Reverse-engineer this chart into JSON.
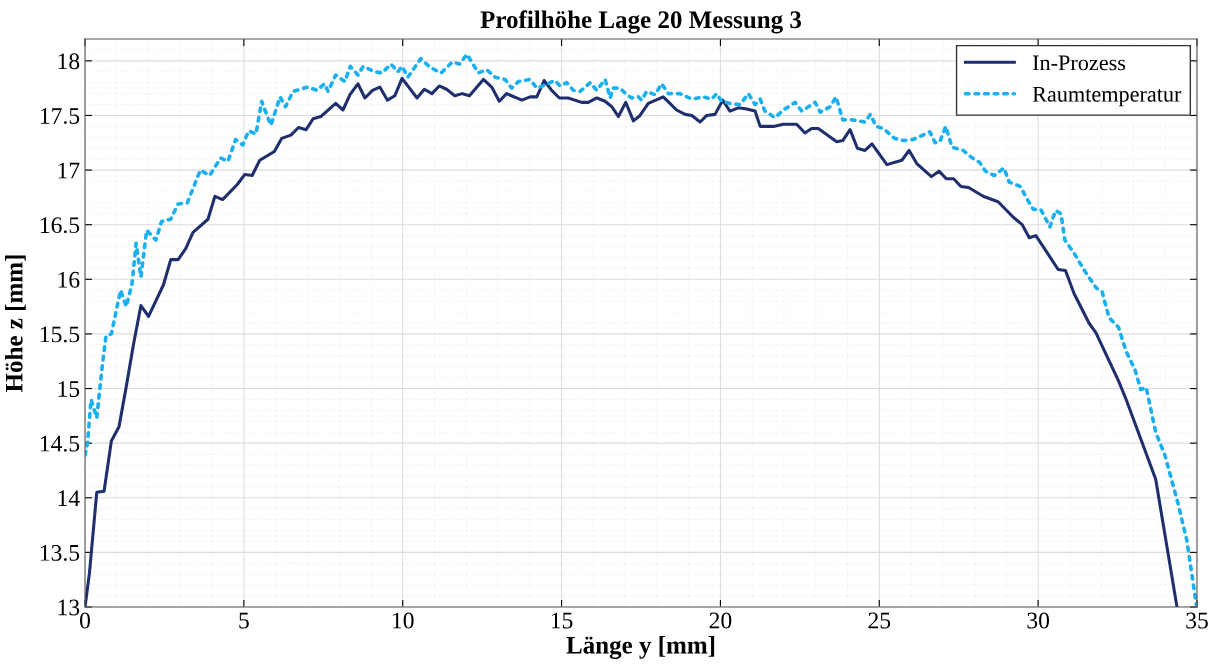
{
  "chart_data": {
    "type": "line",
    "title": "Profilhöhe Lage 20 Messung 3",
    "xlabel": "Länge y [mm]",
    "ylabel": "Höhe z [mm]",
    "xlim": [
      0,
      35
    ],
    "xticks": [
      0,
      5,
      10,
      15,
      20,
      25,
      30,
      35
    ],
    "ylim": [
      13,
      18.2
    ],
    "yticks": [
      13,
      13.5,
      14,
      14.5,
      15,
      15.5,
      16,
      16.5,
      17,
      17.5,
      18
    ],
    "grid": true,
    "legend": "top right",
    "series": [
      {
        "name": "In-Prozess",
        "color": "#1f2f6e",
        "line_style": "solid",
        "x": [
          0,
          0.14,
          0.37,
          0.6,
          0.83,
          1.07,
          1.3,
          1.53,
          1.76,
          2.0,
          2.47,
          2.7,
          2.93,
          3.17,
          3.4,
          3.87,
          4.09,
          4.33,
          4.8,
          5.03,
          5.26,
          5.5,
          5.96,
          6.19,
          6.48,
          6.72,
          6.96,
          7.18,
          7.42,
          7.89,
          8.12,
          8.34,
          8.59,
          8.81,
          9.05,
          9.28,
          9.52,
          9.75,
          9.98,
          10.45,
          10.68,
          10.92,
          11.15,
          11.38,
          11.64,
          11.87,
          12.1,
          12.54,
          12.8,
          13.04,
          13.27,
          13.75,
          14.01,
          14.22,
          14.45,
          14.69,
          14.93,
          15.21,
          15.63,
          15.84,
          16.11,
          16.37,
          16.58,
          16.79,
          17.02,
          17.26,
          17.47,
          17.73,
          18.2,
          18.41,
          18.62,
          18.89,
          19.1,
          19.36,
          19.57,
          19.83,
          20.07,
          20.3,
          20.56,
          20.83,
          21.09,
          21.25,
          21.67,
          21.98,
          22.4,
          22.66,
          22.87,
          23.08,
          23.66,
          23.85,
          24.08,
          24.31,
          24.55,
          24.77,
          25.24,
          25.71,
          25.94,
          26.18,
          26.64,
          26.88,
          27.11,
          27.34,
          27.57,
          27.81,
          28.27,
          28.74,
          29.21,
          29.5,
          29.72,
          29.93,
          30.63,
          30.86,
          31.13,
          31.6,
          31.82,
          32.53,
          32.77,
          33.7,
          34.37
        ],
        "values": [
          13.0,
          13.31,
          14.05,
          14.06,
          14.52,
          14.65,
          15.02,
          15.41,
          15.76,
          15.66,
          15.95,
          16.18,
          16.18,
          16.28,
          16.43,
          16.55,
          16.76,
          16.73,
          16.87,
          16.96,
          16.95,
          17.09,
          17.17,
          17.29,
          17.32,
          17.39,
          17.37,
          17.47,
          17.49,
          17.61,
          17.55,
          17.69,
          17.79,
          17.66,
          17.73,
          17.76,
          17.64,
          17.68,
          17.84,
          17.66,
          17.74,
          17.7,
          17.77,
          17.74,
          17.68,
          17.7,
          17.68,
          17.83,
          17.76,
          17.63,
          17.7,
          17.64,
          17.67,
          17.67,
          17.82,
          17.73,
          17.66,
          17.66,
          17.62,
          17.62,
          17.66,
          17.63,
          17.58,
          17.49,
          17.62,
          17.45,
          17.5,
          17.61,
          17.67,
          17.61,
          17.55,
          17.51,
          17.5,
          17.44,
          17.5,
          17.51,
          17.64,
          17.54,
          17.57,
          17.56,
          17.54,
          17.4,
          17.4,
          17.42,
          17.42,
          17.34,
          17.38,
          17.38,
          17.26,
          17.27,
          17.37,
          17.2,
          17.18,
          17.24,
          17.05,
          17.09,
          17.18,
          17.06,
          16.94,
          16.99,
          16.92,
          16.92,
          16.85,
          16.84,
          16.76,
          16.71,
          16.57,
          16.5,
          16.38,
          16.4,
          16.09,
          16.08,
          15.87,
          15.6,
          15.51,
          15.07,
          14.9,
          14.17,
          13.0
        ]
      },
      {
        "name": "Raumtemperatur",
        "color": "#1ab0f0",
        "line_style": "dotted",
        "x": [
          0,
          0.08,
          0.19,
          0.37,
          0.54,
          0.66,
          0.83,
          1.12,
          1.3,
          1.48,
          1.61,
          1.76,
          1.94,
          2.23,
          2.41,
          2.7,
          2.93,
          3.22,
          3.63,
          3.92,
          4.27,
          4.5,
          4.74,
          4.97,
          5.15,
          5.38,
          5.56,
          5.85,
          6.14,
          6.31,
          6.55,
          7.01,
          7.3,
          7.54,
          7.65,
          7.89,
          8.18,
          8.35,
          8.59,
          8.76,
          9.11,
          9.35,
          9.63,
          9.85,
          9.98,
          10.16,
          10.57,
          10.86,
          11.21,
          11.56,
          11.79,
          12.02,
          12.38,
          12.64,
          12.91,
          13.22,
          13.43,
          13.64,
          14.01,
          14.22,
          14.48,
          14.79,
          14.95,
          15.16,
          15.37,
          15.58,
          15.9,
          16.11,
          16.37,
          16.53,
          16.63,
          16.84,
          17.05,
          17.21,
          17.42,
          17.52,
          17.68,
          17.94,
          18.15,
          18.36,
          18.73,
          19.1,
          19.46,
          19.73,
          19.88,
          20.04,
          20.3,
          20.62,
          20.88,
          21.09,
          21.25,
          21.4,
          21.72,
          21.98,
          22.35,
          22.56,
          22.72,
          22.98,
          23.14,
          23.45,
          23.64,
          23.85,
          24.14,
          24.55,
          24.72,
          24.9,
          25.13,
          25.48,
          25.77,
          26.06,
          26.3,
          26.59,
          26.76,
          26.91,
          27.09,
          27.29,
          27.64,
          27.93,
          28.16,
          28.34,
          28.62,
          28.92,
          29.09,
          29.44,
          29.68,
          29.85,
          30.08,
          30.37,
          30.55,
          30.72,
          30.84,
          31.13,
          31.48,
          31.83,
          32.01,
          32.23,
          32.53,
          32.77,
          33.05,
          33.23,
          33.4,
          33.7,
          33.99,
          34.4,
          34.68,
          34.98
        ],
        "values": [
          14.39,
          14.5,
          14.9,
          14.73,
          15.2,
          15.48,
          15.5,
          15.9,
          15.75,
          15.96,
          16.33,
          16.02,
          16.45,
          16.36,
          16.53,
          16.55,
          16.69,
          16.7,
          17.0,
          16.95,
          17.11,
          17.08,
          17.28,
          17.23,
          17.36,
          17.33,
          17.63,
          17.41,
          17.67,
          17.58,
          17.72,
          17.76,
          17.73,
          17.79,
          17.72,
          17.87,
          17.81,
          17.95,
          17.87,
          17.95,
          17.9,
          17.89,
          17.97,
          17.9,
          17.95,
          17.85,
          18.02,
          17.94,
          17.89,
          17.99,
          17.97,
          18.06,
          17.89,
          17.92,
          17.85,
          17.83,
          17.75,
          17.81,
          17.83,
          17.75,
          17.78,
          17.82,
          17.77,
          17.8,
          17.73,
          17.72,
          17.8,
          17.73,
          17.83,
          17.66,
          17.75,
          17.75,
          17.69,
          17.66,
          17.67,
          17.64,
          17.72,
          17.69,
          17.79,
          17.7,
          17.7,
          17.65,
          17.67,
          17.65,
          17.7,
          17.63,
          17.61,
          17.6,
          17.7,
          17.6,
          17.65,
          17.54,
          17.48,
          17.55,
          17.62,
          17.54,
          17.57,
          17.62,
          17.53,
          17.58,
          17.67,
          17.46,
          17.46,
          17.44,
          17.51,
          17.4,
          17.38,
          17.29,
          17.27,
          17.28,
          17.31,
          17.35,
          17.25,
          17.26,
          17.4,
          17.21,
          17.18,
          17.11,
          17.07,
          16.99,
          16.95,
          17.02,
          16.89,
          16.85,
          16.72,
          16.64,
          16.64,
          16.48,
          16.63,
          16.6,
          16.36,
          16.24,
          16.07,
          15.92,
          15.89,
          15.65,
          15.56,
          15.34,
          15.17,
          14.99,
          15.01,
          14.6,
          14.39,
          13.95,
          13.61,
          13.02
        ]
      }
    ]
  }
}
